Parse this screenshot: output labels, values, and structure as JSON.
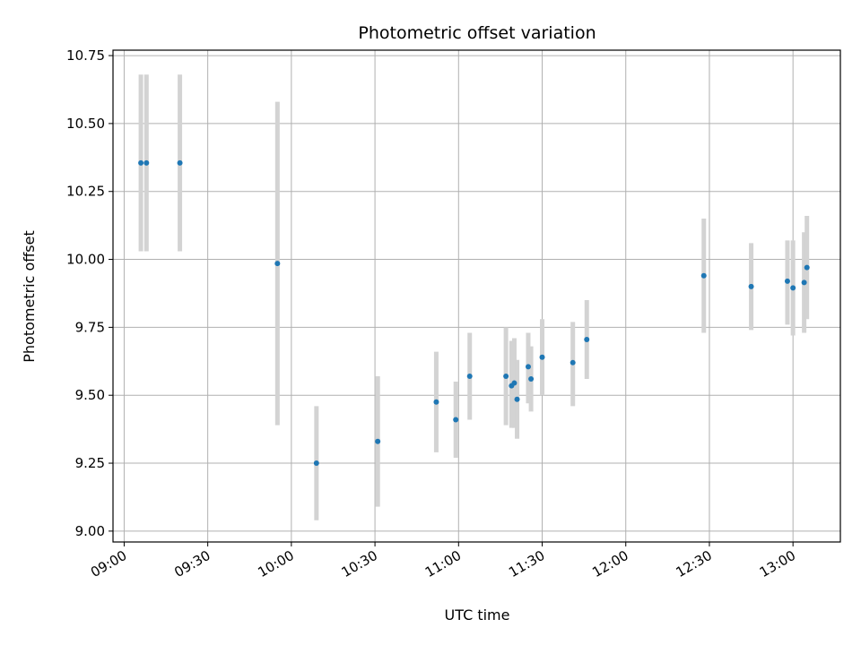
{
  "chart_data": {
    "type": "scatter",
    "title": "Photometric offset variation",
    "xlabel": "UTC time",
    "ylabel": "Photometric offset",
    "x_ticks": [
      "09:00",
      "09:30",
      "10:00",
      "10:30",
      "11:00",
      "11:30",
      "12:00",
      "12:30",
      "13:00"
    ],
    "y_ticks": [
      "9.00",
      "9.25",
      "9.50",
      "9.75",
      "10.00",
      "10.25",
      "10.50",
      "10.75"
    ],
    "xlim": [
      "08:56",
      "13:17"
    ],
    "ylim": [
      8.96,
      10.77
    ],
    "grid": true,
    "point_color": "#1f77b4",
    "errorbar_color": "#d3d3d3",
    "points": [
      {
        "time": "09:06",
        "y": 10.355,
        "low": 10.03,
        "high": 10.68
      },
      {
        "time": "09:08",
        "y": 10.355,
        "low": 10.03,
        "high": 10.68
      },
      {
        "time": "09:20",
        "y": 10.355,
        "low": 10.03,
        "high": 10.68
      },
      {
        "time": "09:55",
        "y": 9.985,
        "low": 9.39,
        "high": 10.58
      },
      {
        "time": "10:09",
        "y": 9.25,
        "low": 9.04,
        "high": 9.46
      },
      {
        "time": "10:31",
        "y": 9.33,
        "low": 9.09,
        "high": 9.57
      },
      {
        "time": "10:52",
        "y": 9.475,
        "low": 9.29,
        "high": 9.66
      },
      {
        "time": "10:59",
        "y": 9.41,
        "low": 9.27,
        "high": 9.55
      },
      {
        "time": "11:04",
        "y": 9.57,
        "low": 9.41,
        "high": 9.73
      },
      {
        "time": "11:17",
        "y": 9.57,
        "low": 9.39,
        "high": 9.75
      },
      {
        "time": "11:19",
        "y": 9.535,
        "low": 9.38,
        "high": 9.7
      },
      {
        "time": "11:20",
        "y": 9.545,
        "low": 9.38,
        "high": 9.71
      },
      {
        "time": "11:21",
        "y": 9.485,
        "low": 9.34,
        "high": 9.63
      },
      {
        "time": "11:25",
        "y": 9.605,
        "low": 9.47,
        "high": 9.73
      },
      {
        "time": "11:26",
        "y": 9.56,
        "low": 9.44,
        "high": 9.68
      },
      {
        "time": "11:30",
        "y": 9.64,
        "low": 9.5,
        "high": 9.78
      },
      {
        "time": "11:41",
        "y": 9.62,
        "low": 9.46,
        "high": 9.77
      },
      {
        "time": "11:46",
        "y": 9.705,
        "low": 9.56,
        "high": 9.85
      },
      {
        "time": "12:28",
        "y": 9.94,
        "low": 9.73,
        "high": 10.15
      },
      {
        "time": "12:45",
        "y": 9.9,
        "low": 9.74,
        "high": 10.06
      },
      {
        "time": "12:58",
        "y": 9.92,
        "low": 9.76,
        "high": 10.07
      },
      {
        "time": "13:00",
        "y": 9.895,
        "low": 9.72,
        "high": 10.07
      },
      {
        "time": "13:04",
        "y": 9.915,
        "low": 9.73,
        "high": 10.1
      },
      {
        "time": "13:05",
        "y": 9.97,
        "low": 9.78,
        "high": 10.16
      }
    ]
  }
}
